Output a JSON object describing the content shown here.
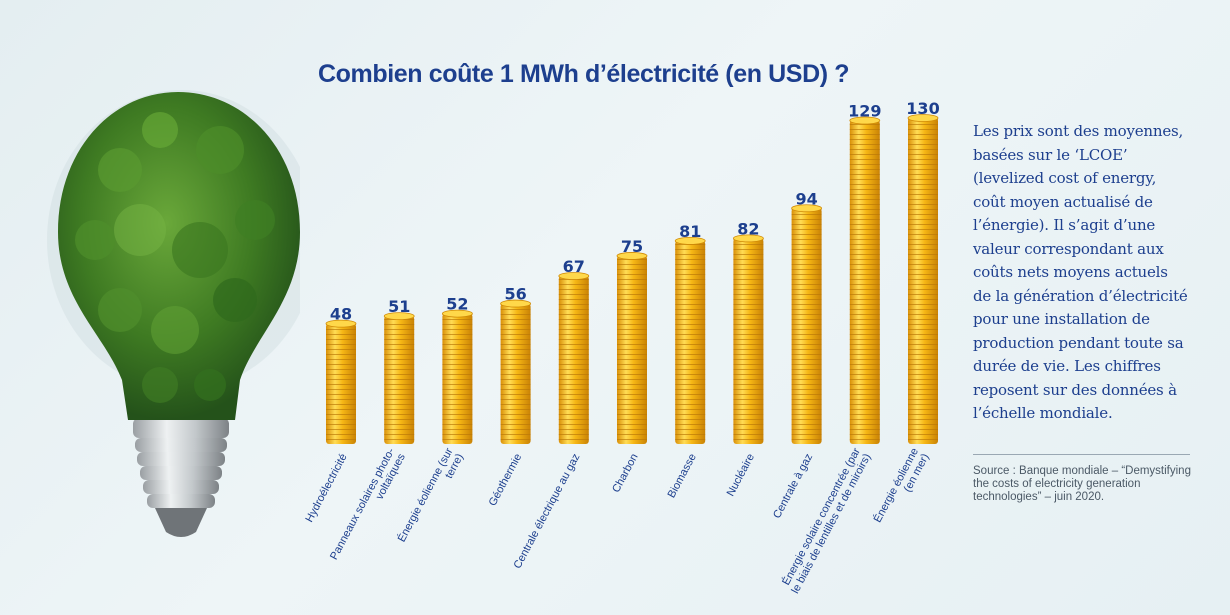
{
  "chart_data": {
    "type": "bar",
    "title": "Combien coûte 1 MWh d’électricité (en USD) ?",
    "categories": [
      "Hydroélectricité",
      "Panneaux solaires photo-|voltaïques",
      "Énergie éolienne (sur|terre)",
      "Géothermie",
      "Centrale électrique au gaz",
      "Charbon",
      "Biomasse",
      "Nucléaire",
      "Centrale à gaz",
      "Énergie solaire concentrée (par|le biais de lentilles et de miroirs)",
      "Énergie éolienne|(en mer)"
    ],
    "values": [
      48,
      51,
      52,
      56,
      67,
      75,
      81,
      82,
      94,
      129,
      130
    ],
    "ylim": [
      0,
      130
    ],
    "grid": false,
    "colors": {
      "coin": "#f6b715",
      "coin_light": "#ffdc55",
      "coin_dark": "#d98f07",
      "value_label": "#1d3f8e"
    }
  },
  "side_note": "Les prix sont des moyennes, basées sur le ‘LCOE’ (levelized cost of energy, coût moyen actualisé de l’énergie). Il s’agit d’une valeur correspondant aux coûts nets moyens actuels de la génération d’électricité pour une installation de production pendant toute sa durée de vie. Les chiffres reposent sur des données à l’échelle mondiale.",
  "source": "Source : Banque mondiale – “Demystifying the costs of electricity generation technologies” – juin 2020.",
  "colors": {
    "title": "#1d3f8e",
    "foliage": "#3e7a22"
  }
}
